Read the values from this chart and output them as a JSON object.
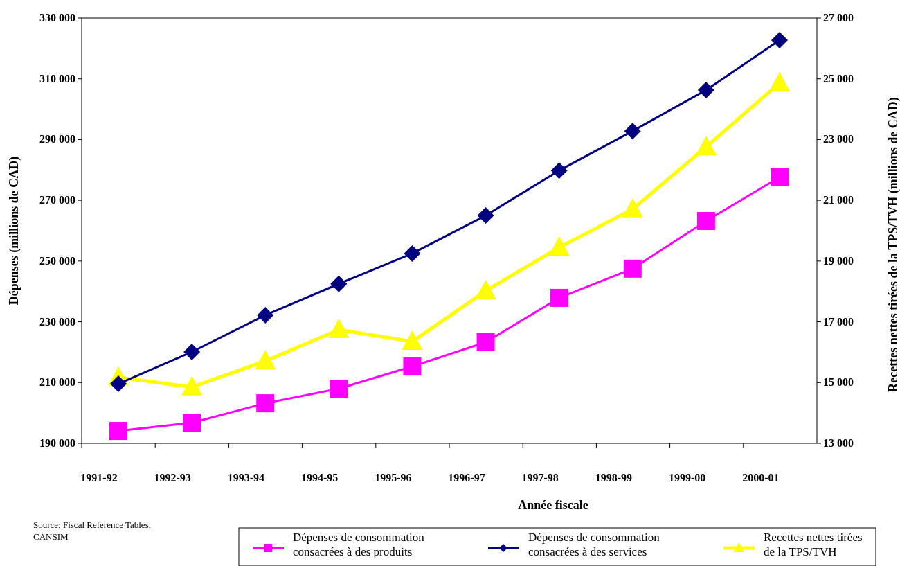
{
  "chart_data": {
    "type": "line",
    "xlabel": "Année fiscale",
    "ylabel": "Dépenses (millions de CAD)",
    "y2label": "Recettes nettes tirées de la TPS/TVH (millions de CAD)",
    "categories": [
      "1991-92",
      "1992-93",
      "1993-94",
      "1994-95",
      "1995-96",
      "1996-97",
      "1997-98",
      "1998-99",
      "1999-00",
      "2000-01"
    ],
    "series": [
      {
        "name": "Dépenses de consommation consacrées à des produits",
        "color": "#ff00ff",
        "marker": "square",
        "values": [
          194100,
          196800,
          203200,
          208000,
          215300,
          223300,
          237900,
          247500,
          263200,
          277600
        ]
      },
      {
        "name": "Dépenses de consommation consacrées à des services",
        "color": "#000080",
        "marker": "diamond",
        "values": [
          209600,
          220100,
          232200,
          242500,
          252500,
          265000,
          279800,
          292800,
          306300,
          322700
        ]
      },
      {
        "name": "Recettes nettes tirées de la TPS/TVH",
        "color": "#ffff00",
        "marker": "triangle",
        "axis": "y2",
        "values": [
          15170,
          14850,
          15710,
          16740,
          16350,
          18020,
          19450,
          20710,
          22760,
          24860
        ]
      }
    ],
    "ylim": [
      190000,
      330000
    ],
    "yticks": [
      {
        "value": 190000,
        "label": "190 000"
      },
      {
        "value": 210000,
        "label": "210 000"
      },
      {
        "value": 230000,
        "label": "230 000"
      },
      {
        "value": 250000,
        "label": "250 000"
      },
      {
        "value": 270000,
        "label": "270 000"
      },
      {
        "value": 290000,
        "label": "290 000"
      },
      {
        "value": 310000,
        "label": "310 000"
      },
      {
        "value": 330000,
        "label": "330 000"
      }
    ],
    "y2lim": [
      13000,
      27000
    ],
    "y2ticks": [
      {
        "value": 13000,
        "label": "13 000"
      },
      {
        "value": 15000,
        "label": "15 000"
      },
      {
        "value": 17000,
        "label": "17 000"
      },
      {
        "value": 19000,
        "label": "19 000"
      },
      {
        "value": 21000,
        "label": "21 000"
      },
      {
        "value": 23000,
        "label": "23 000"
      },
      {
        "value": 25000,
        "label": "25 000"
      },
      {
        "value": 27000,
        "label": "27 000"
      }
    ],
    "legend": "bottom",
    "annotations": [
      "Source: Fiscal Reference Tables, CANSIM"
    ]
  }
}
